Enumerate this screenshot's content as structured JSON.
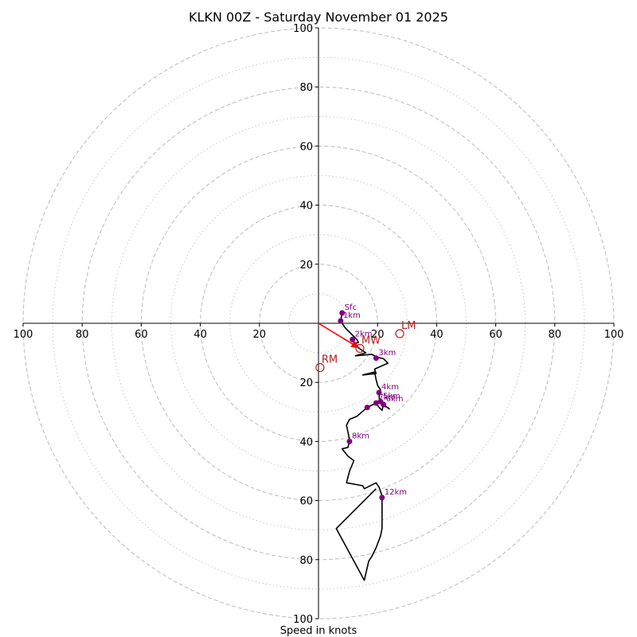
{
  "chart_data": {
    "type": "line",
    "title": "KLKN 00Z - Saturday November 01 2025",
    "xlabel": "Speed in knots",
    "ylabel": "",
    "xlim": [
      -100,
      100
    ],
    "ylim": [
      -100,
      100
    ],
    "rings_major": [
      20,
      40,
      60,
      80,
      100
    ],
    "rings_minor": [
      10,
      30,
      50,
      70,
      90
    ],
    "x_ticks": [
      {
        "value": -100,
        "label": "100"
      },
      {
        "value": -80,
        "label": "80"
      },
      {
        "value": -60,
        "label": "60"
      },
      {
        "value": -40,
        "label": "40"
      },
      {
        "value": -20,
        "label": "20"
      },
      {
        "value": 20,
        "label": "20"
      },
      {
        "value": 40,
        "label": "40"
      },
      {
        "value": 60,
        "label": "60"
      },
      {
        "value": 80,
        "label": "80"
      },
      {
        "value": 100,
        "label": "100"
      }
    ],
    "y_ticks": [
      {
        "value": 100,
        "label": "100"
      },
      {
        "value": 80,
        "label": "80"
      },
      {
        "value": 60,
        "label": "60"
      },
      {
        "value": 40,
        "label": "40"
      },
      {
        "value": 20,
        "label": "20"
      },
      {
        "value": -20,
        "label": "20"
      },
      {
        "value": -40,
        "label": "40"
      },
      {
        "value": -60,
        "label": "60"
      },
      {
        "value": -80,
        "label": "80"
      },
      {
        "value": -100,
        "label": "100"
      }
    ],
    "hodograph": {
      "name": "wind profile",
      "color": "#000000",
      "points": [
        [
          8,
          3.5
        ],
        [
          7.5,
          0.8
        ],
        [
          9,
          -1.5
        ],
        [
          11,
          -3.5
        ],
        [
          13,
          -5.5
        ],
        [
          13.5,
          -6.5
        ],
        [
          11.5,
          -7
        ],
        [
          13,
          -8
        ],
        [
          16,
          -10
        ],
        [
          12.5,
          -11
        ],
        [
          18,
          -10.5
        ],
        [
          20,
          -11.5
        ],
        [
          22,
          -12
        ],
        [
          23.5,
          -13.5
        ],
        [
          19,
          -15.5
        ],
        [
          19.5,
          -17
        ],
        [
          15,
          -17.5
        ],
        [
          19,
          -16.5
        ],
        [
          19.5,
          -19
        ],
        [
          20,
          -21
        ],
        [
          21,
          -22.5
        ],
        [
          20.5,
          -25
        ],
        [
          21,
          -27
        ],
        [
          22,
          -28
        ],
        [
          23.5,
          -28.5
        ],
        [
          24,
          -29
        ],
        [
          22,
          -27.5
        ],
        [
          21.5,
          -29.5
        ],
        [
          20.5,
          -28.5
        ],
        [
          19.5,
          -27
        ],
        [
          17.5,
          -28
        ],
        [
          16.5,
          -28.5
        ],
        [
          13,
          -31.5
        ],
        [
          10.5,
          -32.5
        ],
        [
          9.5,
          -34.5
        ],
        [
          10.5,
          -39.5
        ],
        [
          10,
          -42
        ],
        [
          8,
          -42.5
        ],
        [
          10,
          -45
        ],
        [
          12,
          -46.5
        ],
        [
          10.5,
          -50
        ],
        [
          9.5,
          -54
        ],
        [
          15,
          -55
        ],
        [
          15.5,
          -56
        ],
        [
          19.5,
          -54
        ],
        [
          20.5,
          -55.5
        ],
        [
          21.5,
          -58.5
        ],
        [
          21.5,
          -62
        ],
        [
          21.5,
          -67
        ],
        [
          21.5,
          -69.5
        ],
        [
          21,
          -72
        ],
        [
          19.5,
          -76
        ],
        [
          18,
          -79
        ],
        [
          17,
          -80.5
        ],
        [
          15.5,
          -87
        ],
        [
          6,
          -69.5
        ],
        [
          19.5,
          -56
        ]
      ]
    },
    "height_markers": [
      {
        "label": "Sfc",
        "x": 8,
        "y": 3.5
      },
      {
        "label": "1km",
        "x": 7.5,
        "y": 0.8
      },
      {
        "label": "2km",
        "x": 11.5,
        "y": -5.5
      },
      {
        "label": "3km",
        "x": 19.5,
        "y": -11.8
      },
      {
        "label": "4km",
        "x": 20.5,
        "y": -23.5
      },
      {
        "label": "5km",
        "x": 21,
        "y": -26.5
      },
      {
        "label": "6km",
        "x": 22,
        "y": -27.5
      },
      {
        "label": "7km",
        "x": 19.5,
        "y": -27
      },
      {
        "label": "",
        "x": 16.5,
        "y": -28.5
      },
      {
        "label": "8km",
        "x": 10.5,
        "y": -40
      },
      {
        "label": "12km",
        "x": 21.5,
        "y": -59
      }
    ],
    "marker_color": "#800080",
    "storm_motion": [
      {
        "label": "LM",
        "x": 27.5,
        "y": -3.5
      },
      {
        "label": "MW",
        "x": 14,
        "y": -8.5
      },
      {
        "label": "RM",
        "x": 0.5,
        "y": -15
      }
    ],
    "storm_motion_color": "#b22222",
    "shear_vector": {
      "from": [
        0,
        0
      ],
      "to": [
        14,
        -8.5
      ],
      "color": "#ff0000"
    }
  }
}
